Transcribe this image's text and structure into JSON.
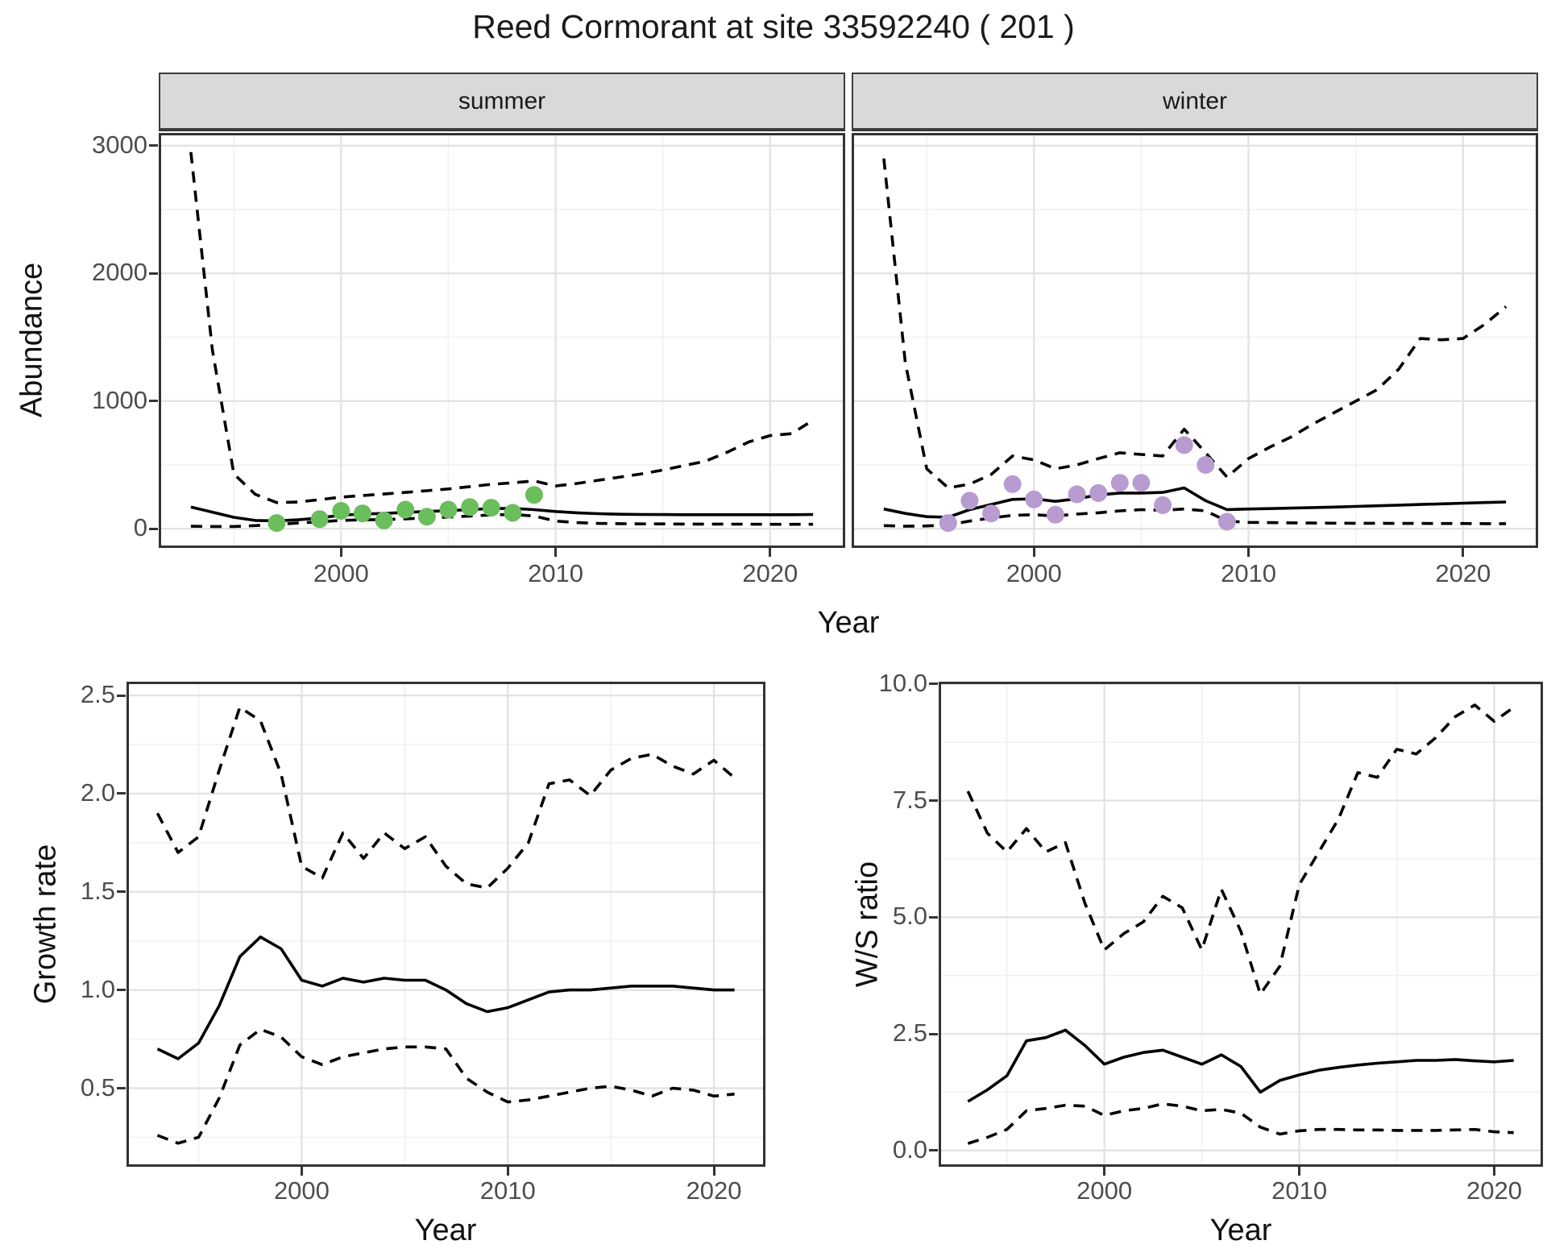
{
  "title": "Reed Cormorant at site 33592240 ( 201 )",
  "colors": {
    "summer_point": "#6ABE5C",
    "winter_point": "#B79BD1",
    "line": "#000000",
    "grid_major": "#E3E3E3",
    "grid_minor": "#F1F1F1",
    "strip_bg": "#D9D9D9",
    "panel_border": "#333333",
    "tick_text": "#4D4D4D"
  },
  "top_row": {
    "ylabel": "Abundance",
    "xlabel": "Year",
    "facets": [
      "summer",
      "winter"
    ]
  },
  "bottom_left": {
    "ylabel": "Growth rate",
    "xlabel": "Year"
  },
  "bottom_right": {
    "ylabel": "W/S ratio",
    "xlabel": "Year"
  },
  "chart_data": [
    {
      "id": "abundance_summer",
      "type": "line",
      "facet": "summer",
      "xlabel": "Year",
      "ylabel": "Abundance",
      "xlim": [
        1991.5,
        2023.5
      ],
      "ylim": [
        -150,
        3100
      ],
      "xticks": {
        "values": [
          2000,
          2010,
          2020
        ],
        "labels": [
          "2000",
          "2010",
          "2020"
        ]
      },
      "yticks": {
        "values": [
          0,
          1000,
          2000,
          3000
        ],
        "labels": [
          "0",
          "1000",
          "2000",
          "3000"
        ]
      },
      "xminor": [
        1995,
        2005,
        2015
      ],
      "yminor": [
        500,
        1500,
        2500
      ],
      "years": [
        1993,
        1994,
        1995,
        1996,
        1997,
        1998,
        1999,
        2000,
        2001,
        2002,
        2003,
        2004,
        2005,
        2006,
        2007,
        2008,
        2009,
        2010,
        2011,
        2012,
        2013,
        2014,
        2015,
        2016,
        2017,
        2018,
        2019,
        2020,
        2021,
        2022
      ],
      "series": [
        {
          "name": "estimate",
          "style": "solid",
          "values": [
            170,
            130,
            90,
            65,
            62,
            70,
            85,
            107,
            115,
            120,
            128,
            135,
            142,
            150,
            158,
            160,
            150,
            135,
            125,
            118,
            114,
            112,
            111,
            110,
            110,
            110,
            110,
            110,
            110,
            112
          ]
        },
        {
          "name": "upper_ci",
          "style": "dashed",
          "values": [
            2950,
            1400,
            430,
            270,
            205,
            210,
            228,
            248,
            260,
            272,
            285,
            298,
            312,
            330,
            348,
            360,
            375,
            335,
            355,
            380,
            405,
            430,
            460,
            495,
            530,
            600,
            680,
            730,
            745,
            850
          ]
        },
        {
          "name": "lower_ci",
          "style": "dashed",
          "values": [
            20,
            18,
            18,
            25,
            35,
            45,
            55,
            65,
            70,
            72,
            78,
            85,
            92,
            100,
            108,
            112,
            100,
            60,
            48,
            42,
            40,
            38,
            38,
            37,
            37,
            36,
            36,
            35,
            35,
            35
          ]
        }
      ],
      "points": {
        "name": "observed_counts_summer",
        "color": "#6ABE5C",
        "years": [
          1997,
          1999,
          2000,
          2001,
          2002,
          2003,
          2004,
          2005,
          2006,
          2007,
          2008,
          2009
        ],
        "values": [
          45,
          75,
          140,
          120,
          65,
          150,
          95,
          150,
          170,
          165,
          125,
          265
        ]
      }
    },
    {
      "id": "abundance_winter",
      "type": "line",
      "facet": "winter",
      "xlabel": "Year",
      "ylabel": "Abundance",
      "xlim": [
        1991.5,
        2023.5
      ],
      "ylim": [
        -150,
        3100
      ],
      "xticks": {
        "values": [
          2000,
          2010,
          2020
        ],
        "labels": [
          "2000",
          "2010",
          "2020"
        ]
      },
      "yticks": {
        "values": [
          0,
          1000,
          2000,
          3000
        ],
        "labels": [
          "0",
          "1000",
          "2000",
          "3000"
        ]
      },
      "xminor": [
        1995,
        2005,
        2015
      ],
      "yminor": [
        500,
        1500,
        2500
      ],
      "years": [
        1993,
        1994,
        1995,
        1996,
        1997,
        1998,
        1999,
        2000,
        2001,
        2002,
        2003,
        2004,
        2005,
        2006,
        2007,
        2008,
        2009,
        2010,
        2011,
        2012,
        2013,
        2014,
        2015,
        2016,
        2017,
        2018,
        2019,
        2020,
        2021,
        2022
      ],
      "series": [
        {
          "name": "estimate",
          "style": "solid",
          "values": [
            155,
            120,
            95,
            90,
            150,
            190,
            230,
            235,
            215,
            235,
            265,
            280,
            280,
            285,
            320,
            220,
            150,
            155,
            158,
            162,
            166,
            170,
            175,
            180,
            185,
            190,
            195,
            200,
            205,
            210
          ]
        },
        {
          "name": "upper_ci",
          "style": "dashed",
          "values": [
            2900,
            1300,
            470,
            320,
            350,
            425,
            570,
            540,
            470,
            500,
            550,
            595,
            582,
            570,
            780,
            595,
            405,
            550,
            640,
            720,
            820,
            910,
            1000,
            1090,
            1250,
            1490,
            1480,
            1490,
            1600,
            1740
          ]
        },
        {
          "name": "lower_ci",
          "style": "dashed",
          "values": [
            25,
            20,
            22,
            30,
            60,
            85,
            105,
            110,
            100,
            115,
            125,
            140,
            150,
            145,
            155,
            140,
            60,
            50,
            48,
            46,
            45,
            44,
            43,
            43,
            42,
            42,
            41,
            41,
            40,
            40
          ]
        }
      ],
      "points": {
        "name": "observed_counts_winter",
        "color": "#B79BD1",
        "years": [
          1996,
          1997,
          1998,
          1999,
          2000,
          2001,
          2002,
          2003,
          2004,
          2005,
          2006,
          2007,
          2008,
          2009
        ],
        "values": [
          45,
          220,
          120,
          350,
          230,
          110,
          270,
          280,
          360,
          360,
          185,
          655,
          500,
          55
        ]
      }
    },
    {
      "id": "growth_rate",
      "type": "line",
      "xlabel": "Year",
      "ylabel": "Growth rate",
      "xlim": [
        1991.5,
        2022.5
      ],
      "ylim": [
        0.1,
        2.57
      ],
      "xticks": {
        "values": [
          2000,
          2010,
          2020
        ],
        "labels": [
          "2000",
          "2010",
          "2020"
        ]
      },
      "yticks": {
        "values": [
          0.5,
          1.0,
          1.5,
          2.0,
          2.5
        ],
        "labels": [
          "0.5",
          "1.0",
          "1.5",
          "2.0",
          "2.5"
        ]
      },
      "xminor": [
        1995,
        2005,
        2015
      ],
      "yminor": [
        0.25,
        0.75,
        1.25,
        1.75,
        2.25
      ],
      "years": [
        1993,
        1994,
        1995,
        1996,
        1997,
        1998,
        1999,
        2000,
        2001,
        2002,
        2003,
        2004,
        2005,
        2006,
        2007,
        2008,
        2009,
        2010,
        2011,
        2012,
        2013,
        2014,
        2015,
        2016,
        2017,
        2018,
        2019,
        2020,
        2021
      ],
      "series": [
        {
          "name": "estimate",
          "style": "solid",
          "values": [
            0.7,
            0.65,
            0.73,
            0.92,
            1.17,
            1.27,
            1.21,
            1.05,
            1.02,
            1.06,
            1.04,
            1.06,
            1.05,
            1.05,
            1.0,
            0.93,
            0.89,
            0.91,
            0.95,
            0.99,
            1.0,
            1.0,
            1.01,
            1.02,
            1.02,
            1.02,
            1.01,
            1.0,
            1.0
          ]
        },
        {
          "name": "upper_ci",
          "style": "dashed",
          "values": [
            1.9,
            1.7,
            1.78,
            2.12,
            2.44,
            2.37,
            2.1,
            1.63,
            1.57,
            1.8,
            1.67,
            1.8,
            1.72,
            1.78,
            1.63,
            1.54,
            1.52,
            1.62,
            1.75,
            2.05,
            2.07,
            1.99,
            2.12,
            2.18,
            2.2,
            2.14,
            2.1,
            2.17,
            2.08
          ]
        },
        {
          "name": "lower_ci",
          "style": "dashed",
          "values": [
            0.26,
            0.22,
            0.25,
            0.45,
            0.72,
            0.8,
            0.76,
            0.66,
            0.62,
            0.66,
            0.68,
            0.7,
            0.71,
            0.71,
            0.7,
            0.55,
            0.48,
            0.43,
            0.44,
            0.46,
            0.48,
            0.5,
            0.51,
            0.49,
            0.46,
            0.5,
            0.49,
            0.46,
            0.47
          ]
        }
      ]
    },
    {
      "id": "ws_ratio",
      "type": "line",
      "xlabel": "Year",
      "ylabel": "W/S ratio",
      "xlim": [
        1991.5,
        2022.5
      ],
      "ylim": [
        -0.35,
        10.05
      ],
      "xticks": {
        "values": [
          2000,
          2010,
          2020
        ],
        "labels": [
          "2000",
          "2010",
          "2020"
        ]
      },
      "yticks": {
        "values": [
          0.0,
          2.5,
          5.0,
          7.5,
          10.0
        ],
        "labels": [
          "0.0",
          "2.5",
          "5.0",
          "7.5",
          "10.0"
        ]
      },
      "xminor": [
        1995,
        2005,
        2015
      ],
      "yminor": [
        1.25,
        3.75,
        6.25,
        8.75
      ],
      "years": [
        1993,
        1994,
        1995,
        1996,
        1997,
        1998,
        1999,
        2000,
        2001,
        2002,
        2003,
        2004,
        2005,
        2006,
        2007,
        2008,
        2009,
        2010,
        2011,
        2012,
        2013,
        2014,
        2015,
        2016,
        2017,
        2018,
        2019,
        2020,
        2021
      ],
      "series": [
        {
          "name": "estimate",
          "style": "solid",
          "values": [
            1.05,
            1.3,
            1.6,
            2.35,
            2.42,
            2.58,
            2.25,
            1.85,
            2.0,
            2.1,
            2.15,
            2.0,
            1.85,
            2.05,
            1.8,
            1.25,
            1.5,
            1.62,
            1.72,
            1.78,
            1.83,
            1.87,
            1.9,
            1.93,
            1.93,
            1.95,
            1.92,
            1.9,
            1.93
          ]
        },
        {
          "name": "upper_ci",
          "style": "dashed",
          "values": [
            7.7,
            6.8,
            6.4,
            6.9,
            6.4,
            6.6,
            5.3,
            4.3,
            4.65,
            4.9,
            5.45,
            5.2,
            4.3,
            5.6,
            4.7,
            3.35,
            3.95,
            5.7,
            6.4,
            7.1,
            8.1,
            8.0,
            8.6,
            8.5,
            8.85,
            9.3,
            9.55,
            9.2,
            9.5
          ]
        },
        {
          "name": "lower_ci",
          "style": "dashed",
          "values": [
            0.15,
            0.28,
            0.45,
            0.85,
            0.9,
            0.97,
            0.95,
            0.75,
            0.85,
            0.9,
            1.0,
            0.95,
            0.85,
            0.88,
            0.8,
            0.5,
            0.35,
            0.42,
            0.45,
            0.45,
            0.44,
            0.44,
            0.43,
            0.43,
            0.43,
            0.44,
            0.45,
            0.4,
            0.38
          ]
        }
      ]
    }
  ]
}
